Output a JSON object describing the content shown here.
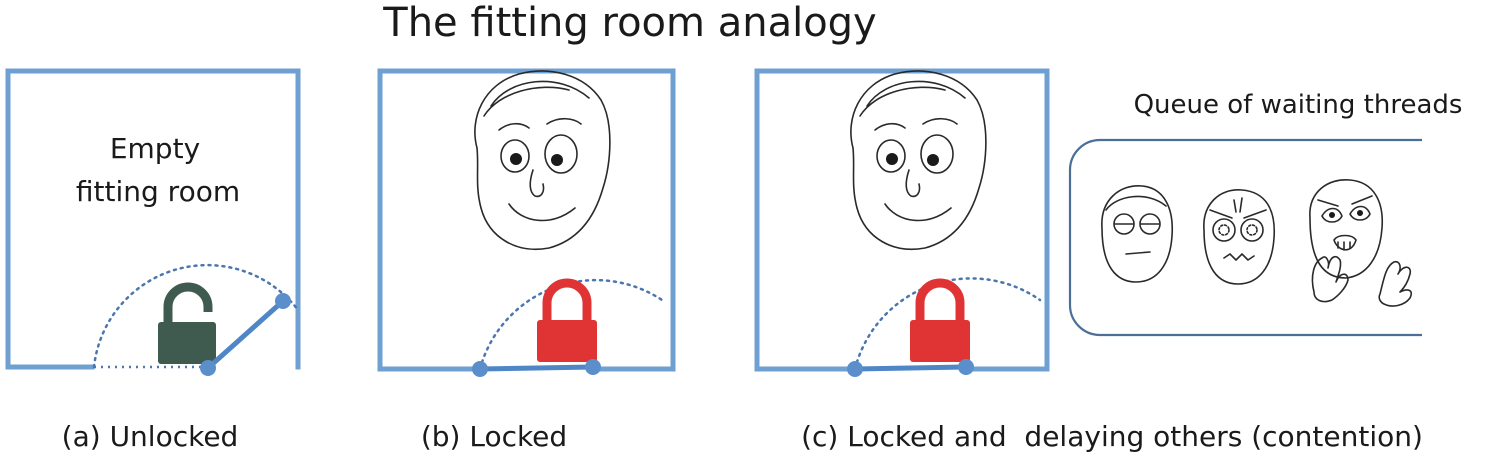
{
  "title": "The fitting room analogy",
  "colors": {
    "wall": "#6fa0d2",
    "door": "#4f86c6",
    "lock_open": "#3f5a4e",
    "lock_closed": "#e03434"
  },
  "panels": [
    {
      "caption": "(a) Unlocked",
      "room_label_line1": "Empty",
      "room_label_line2": "fitting room",
      "lock_state": "unlocked",
      "occupant": "none"
    },
    {
      "caption": "(b) Locked",
      "lock_state": "locked",
      "occupant": "smiling face"
    },
    {
      "caption": "(c) Locked and  delaying others (contention)",
      "lock_state": "locked",
      "occupant": "smiling face",
      "queue_label": "Queue of waiting threads",
      "waiting_faces": [
        "bored face",
        "angry face",
        "desperate face"
      ]
    }
  ]
}
